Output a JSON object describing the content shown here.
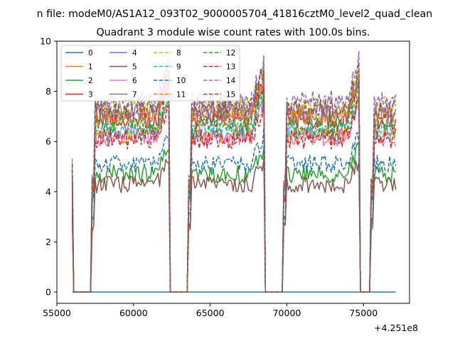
{
  "chart_data": {
    "type": "line",
    "suptitle": "n file: modeM0/AS1A12_093T02_9000005704_41816cztM0_level2_quad_clean",
    "title": "Quadrant 3 module wise count rates with 100.0s bins.",
    "xlabel": "",
    "ylabel": "",
    "x_offset_label": "+4.251e8",
    "xlim": [
      55000,
      78000
    ],
    "ylim": [
      -0.45,
      10
    ],
    "xticks": [
      55000,
      60000,
      65000,
      70000,
      75000
    ],
    "xtick_labels": [
      "55000",
      "60000",
      "65000",
      "70000",
      "75000"
    ],
    "yticks": [
      0,
      2,
      4,
      6,
      8,
      10
    ],
    "ytick_labels": [
      "0",
      "2",
      "4",
      "6",
      "8",
      "10"
    ],
    "grid": false,
    "legend_position": "top-left",
    "legend_columns": 4,
    "x_start": 56100,
    "x_end": 77100,
    "x_step": 100,
    "gti_segments": [
      {
        "start": 57300,
        "end": 62300
      },
      {
        "start": 63600,
        "end": 68500
      },
      {
        "start": 69800,
        "end": 74700
      },
      {
        "start": 75500,
        "end": 77100
      }
    ],
    "series": [
      {
        "name": "0",
        "style": "solid",
        "color": "#1f77b4",
        "base_level": 0,
        "noise": 0
      },
      {
        "name": "1",
        "style": "solid",
        "color": "#ff7f0e",
        "base_level": 6.3,
        "noise": 0.4
      },
      {
        "name": "2",
        "style": "solid",
        "color": "#2ca02c",
        "base_level": 4.7,
        "noise": 0.35
      },
      {
        "name": "3",
        "style": "solid",
        "color": "#d62728",
        "base_level": 6.9,
        "noise": 0.4
      },
      {
        "name": "4",
        "style": "solid",
        "color": "#9467bd",
        "base_level": 7.2,
        "noise": 0.4
      },
      {
        "name": "5",
        "style": "solid",
        "color": "#8c564b",
        "base_level": 4.3,
        "noise": 0.35
      },
      {
        "name": "6",
        "style": "solid",
        "color": "#e377c2",
        "base_level": 6.2,
        "noise": 0.4
      },
      {
        "name": "7",
        "style": "solid",
        "color": "#7f7f7f",
        "base_level": 7.0,
        "noise": 0.4
      },
      {
        "name": "8",
        "style": "dashed",
        "color": "#bcbd22",
        "base_level": 7.4,
        "noise": 0.4
      },
      {
        "name": "9",
        "style": "dashed",
        "color": "#17becf",
        "base_level": 6.4,
        "noise": 0.4
      },
      {
        "name": "10",
        "style": "dashed",
        "color": "#1f77b4",
        "base_level": 5.1,
        "noise": 0.35
      },
      {
        "name": "11",
        "style": "dashed",
        "color": "#ff7f0e",
        "base_level": 7.0,
        "noise": 0.4
      },
      {
        "name": "12",
        "style": "dashed",
        "color": "#2ca02c",
        "base_level": 6.6,
        "noise": 0.4
      },
      {
        "name": "13",
        "style": "dashed",
        "color": "#d62728",
        "base_level": 6.1,
        "noise": 0.4
      },
      {
        "name": "14",
        "style": "dashed",
        "color": "#9467bd",
        "base_level": 7.6,
        "noise": 0.45
      },
      {
        "name": "15",
        "style": "dashed",
        "color": "#8c564b",
        "base_level": 7.3,
        "noise": 0.4
      }
    ]
  }
}
